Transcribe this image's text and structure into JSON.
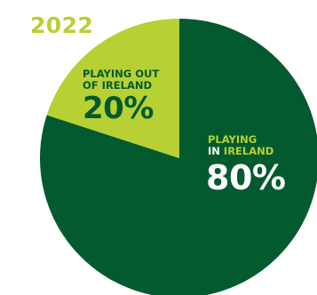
{
  "chart_data": {
    "type": "pie",
    "title": "2022",
    "slices": [
      {
        "label_line1": "PLAYING",
        "label_line2_prefix": "IN",
        "label_line2_rest": " IRELAND",
        "value": 80,
        "value_label": "80%",
        "color": "#025a2e"
      },
      {
        "label_line1": "PLAYING OUT",
        "label_line2_prefix": "OF IRELAND",
        "label_line2_rest": "",
        "value": 20,
        "value_label": "20%",
        "color": "#b7d033"
      }
    ],
    "start_angle_deg": 0,
    "direction": "clockwise"
  },
  "colors": {
    "title": "#b7d033",
    "label_accent": "#b7d033",
    "label_light": "#ffffff",
    "label_dark": "#025a2e"
  }
}
